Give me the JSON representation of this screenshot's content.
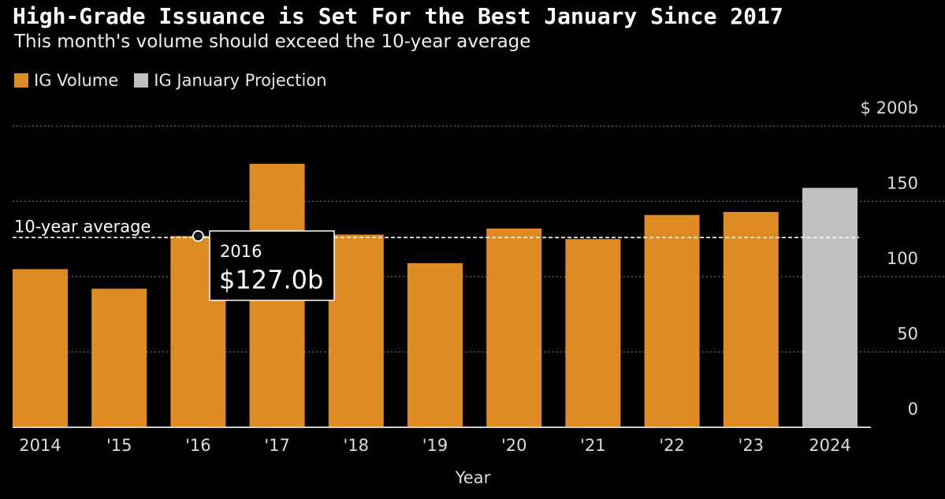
{
  "title": "High-Grade Issuance is Set For the Best January Since 2017",
  "subtitle": "This month's volume should exceed the 10-year average",
  "colors": {
    "volume": "#de8b23",
    "projection": "#c0c0c0",
    "background": "#000000",
    "grid": "#6a6a6a",
    "text": "#dcdcdc"
  },
  "legend": [
    {
      "label": "IG Volume",
      "color": "#de8b23"
    },
    {
      "label": "IG January Projection",
      "color": "#c0c0c0"
    }
  ],
  "tooltip": {
    "year": "2016",
    "value": "$127.0b"
  },
  "chart_data": {
    "type": "bar",
    "categories": [
      "2014",
      "'15",
      "'16",
      "'17",
      "'18",
      "'19",
      "'20",
      "'21",
      "'22",
      "'23",
      "2024"
    ],
    "series": [
      {
        "name": "IG Volume",
        "values": [
          105,
          92,
          127,
          175,
          128,
          109,
          132,
          125,
          141,
          143,
          null
        ]
      },
      {
        "name": "IG January Projection",
        "values": [
          null,
          null,
          null,
          null,
          null,
          null,
          null,
          null,
          null,
          null,
          159
        ]
      }
    ],
    "reference_line": {
      "label": "10-year average",
      "value": 126
    },
    "xlabel": "Year",
    "ylabel": "",
    "ylim": [
      0,
      200
    ],
    "y_ticks": [
      {
        "value": 0,
        "label": "0"
      },
      {
        "value": 50,
        "label": "50"
      },
      {
        "value": 100,
        "label": "100"
      },
      {
        "value": 150,
        "label": "150"
      },
      {
        "value": 200,
        "label": "$ 200b"
      }
    ],
    "grid": true,
    "legend_position": "top-left"
  }
}
